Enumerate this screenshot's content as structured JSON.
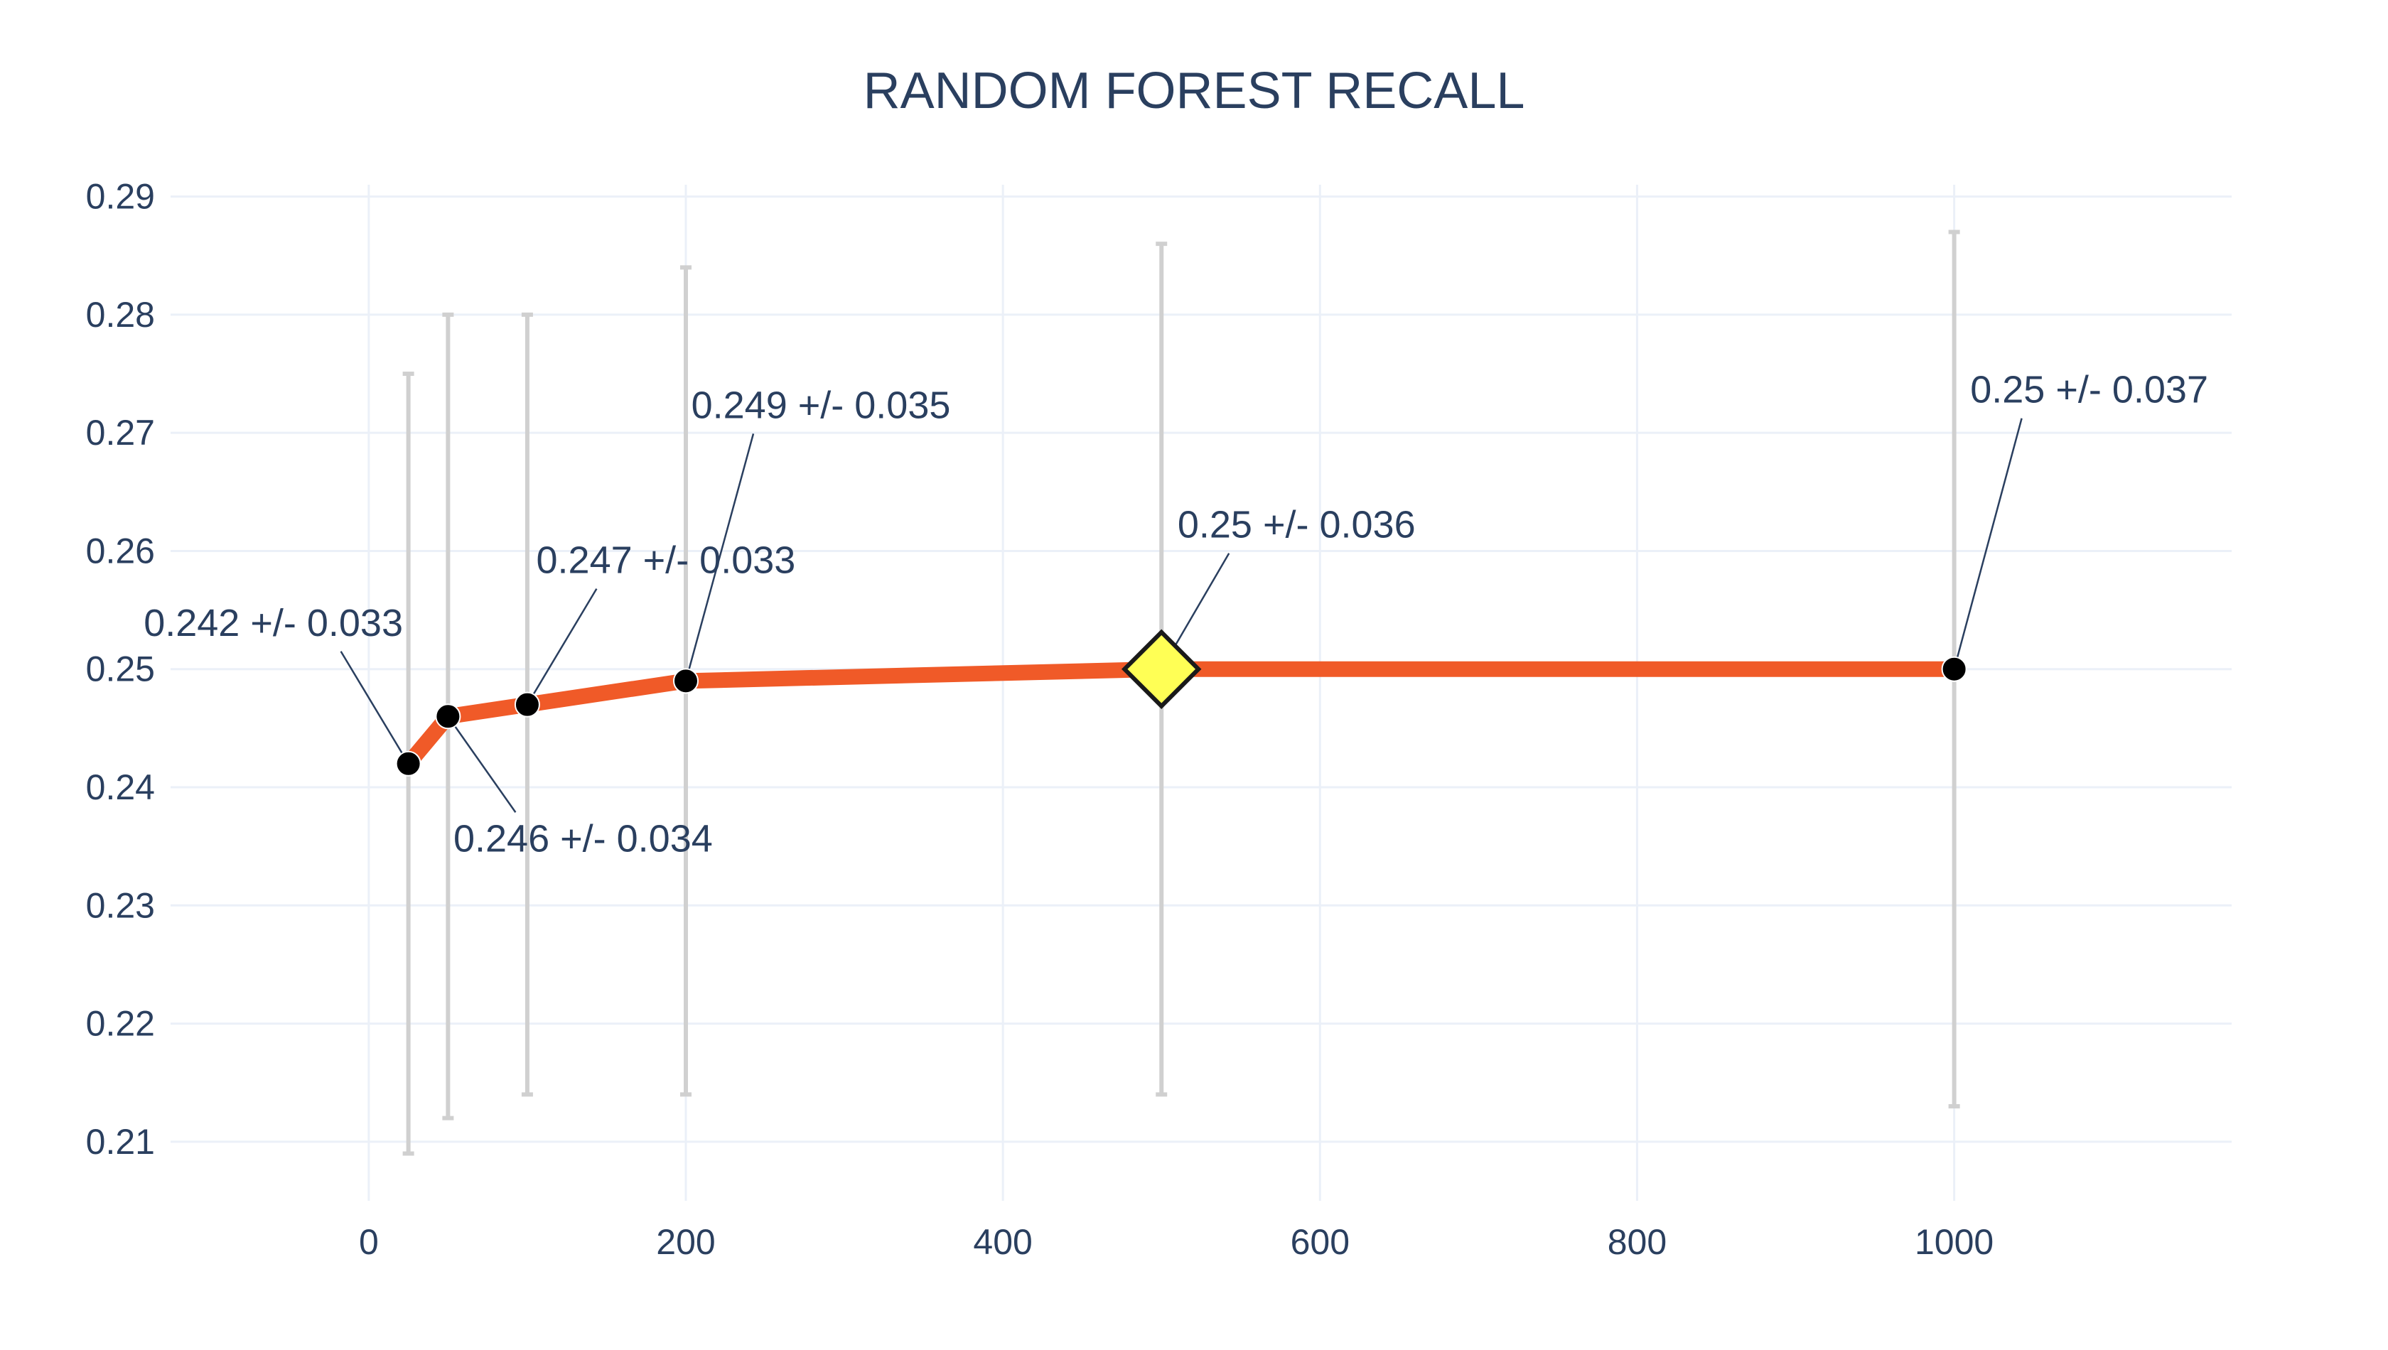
{
  "chart_data": {
    "type": "line",
    "title": "RANDOM FOREST RECALL",
    "xlabel": "",
    "ylabel": "",
    "xlim": [
      -125,
      1175
    ],
    "ylim": [
      0.205,
      0.291
    ],
    "xticks": [
      0,
      200,
      400,
      600,
      800,
      1000
    ],
    "xtick_labels": [
      "0",
      "200",
      "400",
      "600",
      "800",
      "1000"
    ],
    "yticks": [
      0.21,
      0.22,
      0.23,
      0.24,
      0.25,
      0.26,
      0.27,
      0.28,
      0.29
    ],
    "ytick_labels": [
      "0.21",
      "0.22",
      "0.23",
      "0.24",
      "0.25",
      "0.26",
      "0.27",
      "0.28",
      "0.29"
    ],
    "grid": true,
    "colors": {
      "line": "#f05a28",
      "marker": "#000000",
      "highlight_marker": "#ffff55",
      "error_bar": "#d0d0d0",
      "grid": "#ebf0f8",
      "text": "#2a3f5f"
    },
    "series": [
      {
        "x": [
          25,
          50,
          100,
          200,
          500,
          1000
        ],
        "y": [
          0.242,
          0.246,
          0.247,
          0.249,
          0.25,
          0.25
        ],
        "error": [
          0.033,
          0.034,
          0.033,
          0.035,
          0.036,
          0.037
        ],
        "highlight_index": 4
      }
    ],
    "annotations": [
      {
        "x": 25,
        "y": 0.242,
        "text": "0.242 +/- 0.033"
      },
      {
        "x": 50,
        "y": 0.246,
        "text": "0.246 +/- 0.034"
      },
      {
        "x": 100,
        "y": 0.247,
        "text": "0.247 +/- 0.033"
      },
      {
        "x": 200,
        "y": 0.249,
        "text": "0.249 +/- 0.035"
      },
      {
        "x": 500,
        "y": 0.25,
        "text": "0.25 +/- 0.036"
      },
      {
        "x": 1000,
        "y": 0.25,
        "text": "0.25 +/- 0.037"
      }
    ]
  }
}
